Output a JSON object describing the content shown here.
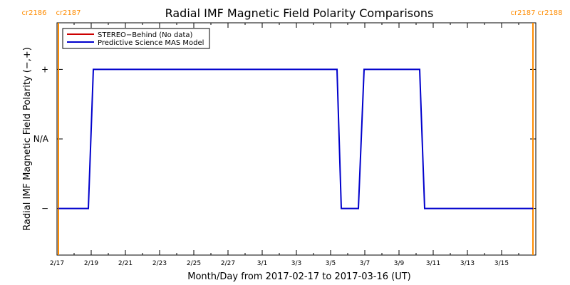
{
  "chart_data": {
    "type": "line",
    "title": "Radial IMF Magnetic Field Polarity Comparisons",
    "xlabel": "Month/Day from 2017-02-17 to 2017-03-16 (UT)",
    "ylabel": "Radial IMF Magnetic Field Polarity (−,+)",
    "xlim": [
      "2017-02-17",
      "2017-03-17"
    ],
    "ylim": [
      -1.67,
      1.67
    ],
    "x_ticks": [
      "2/17",
      "2/19",
      "2/21",
      "2/23",
      "2/25",
      "2/27",
      "3/1",
      "3/3",
      "3/5",
      "3/7",
      "3/9",
      "3/11",
      "3/13",
      "3/15"
    ],
    "y_ticks": [
      {
        "value": 1,
        "label": "+"
      },
      {
        "value": 0,
        "label": "N/A"
      },
      {
        "value": -1,
        "label": "−"
      }
    ],
    "grid": false,
    "legend_position": "top-left",
    "series": [
      {
        "name": "STEREO−Behind (No data)",
        "color": "#cc0000",
        "x": [],
        "y": []
      },
      {
        "name": "Predictive Science MAS Model",
        "color": "#0000cc",
        "x": [
          "2017-02-17T02:00",
          "2017-02-18T20:00",
          "2017-02-19T03:00",
          "2017-03-05T09:00",
          "2017-03-05T15:00",
          "2017-03-06T15:00",
          "2017-03-06T23:00",
          "2017-03-10T05:00",
          "2017-03-10T12:00",
          "2017-03-16T20:00"
        ],
        "y": [
          -1,
          -1,
          1,
          1,
          -1,
          -1,
          1,
          1,
          -1,
          -1
        ]
      }
    ],
    "rotation_markers": [
      {
        "date": "2017-02-17T02:00",
        "labels": [
          "cr2186",
          "cr2187"
        ],
        "side": "left",
        "color": "#ff8c00"
      },
      {
        "date": "2017-03-16T20:00",
        "labels": [
          "cr2187",
          "cr2188"
        ],
        "side": "right",
        "color": "#ff8c00"
      }
    ]
  }
}
